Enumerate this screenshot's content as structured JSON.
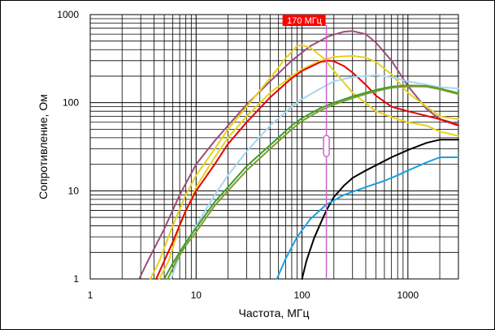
{
  "chart_data": {
    "type": "line",
    "x_scale": "log",
    "y_scale": "log",
    "xlim": [
      1,
      3000
    ],
    "ylim": [
      1,
      1000
    ],
    "xlabel": "Частота, МГц",
    "ylabel": "Сопротивление, Ом",
    "x_ticks": [
      "1",
      "10",
      "100",
      "1000"
    ],
    "y_ticks": [
      "1",
      "10",
      "100",
      "1000"
    ],
    "grid": true,
    "marker": {
      "label": "170 МГц",
      "x": 170,
      "color": "#cc66cc",
      "label_bg": "#ff0000"
    },
    "series": [
      {
        "color": "#9c4c7c",
        "points": [
          [
            2.9,
            1
          ],
          [
            3.5,
            1.6
          ],
          [
            5,
            3.7
          ],
          [
            7,
            9
          ],
          [
            10,
            20
          ],
          [
            15,
            37
          ],
          [
            20,
            55
          ],
          [
            30,
            95
          ],
          [
            50,
            175
          ],
          [
            80,
            300
          ],
          [
            120,
            440
          ],
          [
            180,
            570
          ],
          [
            250,
            640
          ],
          [
            300,
            650
          ],
          [
            400,
            600
          ],
          [
            500,
            480
          ],
          [
            700,
            300
          ],
          [
            1000,
            155
          ],
          [
            1500,
            85
          ],
          [
            2000,
            65
          ],
          [
            3000,
            57
          ]
        ]
      },
      {
        "color": "#e6d21e",
        "points": [
          [
            3.7,
            1
          ],
          [
            4.5,
            1.6
          ],
          [
            6,
            4
          ],
          [
            8,
            9
          ],
          [
            10,
            15
          ],
          [
            15,
            30
          ],
          [
            20,
            50
          ],
          [
            30,
            90
          ],
          [
            50,
            190
          ],
          [
            70,
            320
          ],
          [
            90,
            440
          ],
          [
            100,
            450
          ],
          [
            120,
            420
          ],
          [
            160,
            320
          ],
          [
            200,
            230
          ],
          [
            300,
            130
          ],
          [
            500,
            80
          ],
          [
            800,
            65
          ],
          [
            1000,
            60
          ],
          [
            1500,
            55
          ],
          [
            2000,
            47
          ],
          [
            3000,
            42
          ]
        ]
      },
      {
        "color": "#e6d21e",
        "points": [
          [
            4.5,
            1
          ],
          [
            5.5,
            1.6
          ],
          [
            7,
            4
          ],
          [
            10,
            11
          ],
          [
            15,
            24
          ],
          [
            20,
            40
          ],
          [
            30,
            70
          ],
          [
            50,
            130
          ],
          [
            80,
            200
          ],
          [
            100,
            240
          ],
          [
            150,
            300
          ],
          [
            200,
            330
          ],
          [
            300,
            340
          ],
          [
            400,
            325
          ],
          [
            500,
            290
          ],
          [
            700,
            210
          ],
          [
            1000,
            130
          ],
          [
            1500,
            90
          ],
          [
            2000,
            70
          ],
          [
            3000,
            65
          ]
        ]
      },
      {
        "color": "#e60000",
        "points": [
          [
            4.2,
            1
          ],
          [
            5,
            1.6
          ],
          [
            6,
            2.6
          ],
          [
            8,
            6
          ],
          [
            10,
            10
          ],
          [
            15,
            20
          ],
          [
            20,
            34
          ],
          [
            30,
            60
          ],
          [
            50,
            115
          ],
          [
            80,
            190
          ],
          [
            100,
            230
          ],
          [
            150,
            290
          ],
          [
            180,
            300
          ],
          [
            200,
            295
          ],
          [
            250,
            260
          ],
          [
            300,
            220
          ],
          [
            400,
            160
          ],
          [
            500,
            120
          ],
          [
            700,
            90
          ],
          [
            1000,
            80
          ],
          [
            2000,
            65
          ],
          [
            3000,
            55
          ]
        ]
      },
      {
        "color": "#a6d6f0",
        "points": [
          [
            5.8,
            1
          ],
          [
            7,
            1.9
          ],
          [
            10,
            4
          ],
          [
            15,
            9
          ],
          [
            20,
            15
          ],
          [
            30,
            28
          ],
          [
            50,
            55
          ],
          [
            80,
            90
          ],
          [
            100,
            110
          ],
          [
            150,
            145
          ],
          [
            200,
            175
          ],
          [
            300,
            195
          ],
          [
            500,
            205
          ],
          [
            700,
            195
          ],
          [
            1000,
            175
          ],
          [
            1500,
            160
          ],
          [
            2000,
            150
          ],
          [
            3000,
            145
          ]
        ]
      },
      {
        "color": "#3c9c2c",
        "points": [
          [
            5,
            1
          ],
          [
            6,
            1.5
          ],
          [
            8,
            2.6
          ],
          [
            10,
            3.8
          ],
          [
            15,
            7.5
          ],
          [
            20,
            11
          ],
          [
            30,
            19
          ],
          [
            50,
            33
          ],
          [
            80,
            55
          ],
          [
            100,
            67
          ],
          [
            150,
            87
          ],
          [
            200,
            100
          ],
          [
            300,
            118
          ],
          [
            400,
            130
          ],
          [
            500,
            140
          ],
          [
            700,
            152
          ],
          [
            1000,
            157
          ],
          [
            1500,
            155
          ],
          [
            2000,
            145
          ],
          [
            3000,
            128
          ]
        ]
      },
      {
        "color": "#7c9c2c",
        "points": [
          [
            5.4,
            1
          ],
          [
            6.5,
            1.6
          ],
          [
            8,
            2.4
          ],
          [
            10,
            3.4
          ],
          [
            15,
            6.8
          ],
          [
            20,
            10
          ],
          [
            30,
            17
          ],
          [
            50,
            30
          ],
          [
            80,
            50
          ],
          [
            100,
            62
          ],
          [
            150,
            82
          ],
          [
            200,
            95
          ],
          [
            300,
            113
          ],
          [
            400,
            125
          ],
          [
            500,
            135
          ],
          [
            700,
            148
          ],
          [
            1000,
            153
          ],
          [
            1500,
            152
          ],
          [
            2000,
            142
          ],
          [
            3000,
            125
          ]
        ]
      },
      {
        "color": "#000000",
        "points": [
          [
            100,
            1
          ],
          [
            110,
            1.6
          ],
          [
            130,
            2.9
          ],
          [
            150,
            4.3
          ],
          [
            170,
            6
          ],
          [
            200,
            8.5
          ],
          [
            250,
            11.5
          ],
          [
            300,
            14
          ],
          [
            400,
            17
          ],
          [
            500,
            19.5
          ],
          [
            700,
            24
          ],
          [
            1000,
            29
          ],
          [
            1500,
            35
          ],
          [
            2000,
            38
          ],
          [
            3000,
            38
          ]
        ]
      },
      {
        "color": "#1aa0e0",
        "points": [
          [
            58,
            1
          ],
          [
            70,
            1.7
          ],
          [
            90,
            3
          ],
          [
            120,
            4.8
          ],
          [
            170,
            7
          ],
          [
            250,
            9
          ],
          [
            400,
            11
          ],
          [
            600,
            13
          ],
          [
            800,
            15
          ],
          [
            1000,
            17
          ],
          [
            1500,
            21
          ],
          [
            2000,
            24
          ],
          [
            3000,
            24
          ]
        ]
      }
    ]
  }
}
